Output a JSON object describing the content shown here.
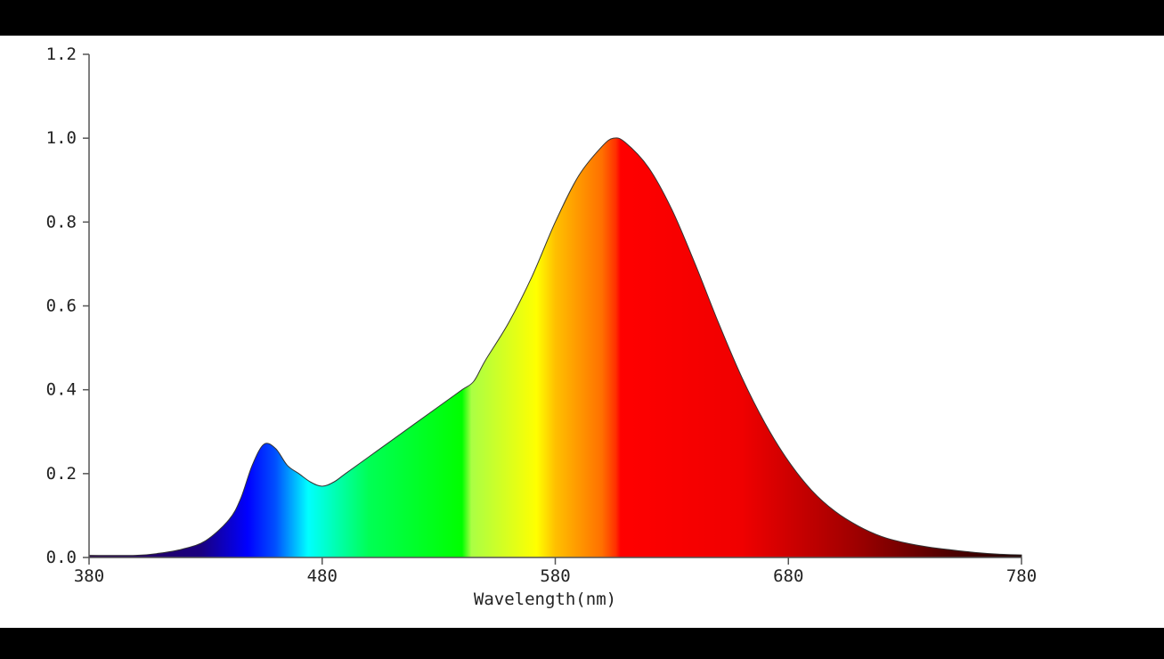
{
  "chart_data": {
    "type": "area",
    "title": "",
    "xlabel": "Wavelength(nm)",
    "ylabel": "",
    "xlim": [
      380,
      780
    ],
    "ylim": [
      0,
      1.2
    ],
    "x_ticks": [
      380,
      480,
      580,
      680,
      780
    ],
    "y_ticks": [
      "0.0",
      "0.2",
      "0.4",
      "0.6",
      "0.8",
      "1.0",
      "1.2"
    ],
    "grid": false,
    "legend": "none",
    "fill": "visible-spectrum gradient",
    "series": [
      {
        "x": [
          380,
          400,
          410,
          420,
          430,
          440,
          445,
          450,
          455,
          460,
          465,
          470,
          475,
          480,
          485,
          490,
          500,
          510,
          520,
          530,
          540,
          545,
          550,
          560,
          570,
          580,
          590,
          600,
          605,
          610,
          620,
          630,
          640,
          650,
          660,
          670,
          680,
          690,
          700,
          710,
          720,
          730,
          740,
          750,
          760,
          770,
          780
        ],
        "values": [
          0.005,
          0.005,
          0.01,
          0.02,
          0.04,
          0.09,
          0.14,
          0.22,
          0.27,
          0.26,
          0.22,
          0.2,
          0.18,
          0.17,
          0.18,
          0.2,
          0.24,
          0.28,
          0.32,
          0.36,
          0.4,
          0.42,
          0.47,
          0.56,
          0.67,
          0.8,
          0.91,
          0.98,
          1.0,
          0.99,
          0.93,
          0.83,
          0.7,
          0.56,
          0.43,
          0.32,
          0.23,
          0.16,
          0.11,
          0.075,
          0.05,
          0.035,
          0.025,
          0.018,
          0.012,
          0.008,
          0.006
        ]
      }
    ]
  }
}
